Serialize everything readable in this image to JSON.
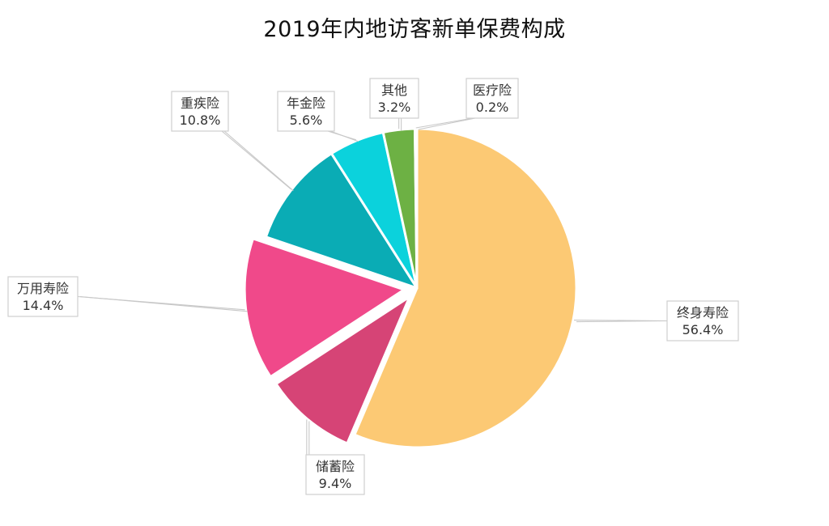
{
  "chart_data": {
    "type": "pie",
    "title": "2019年内地访客新单保费构成",
    "slices": [
      {
        "name": "终身寿险",
        "value": 56.4,
        "label": "56.4%",
        "color": "#FCC974"
      },
      {
        "name": "储蓄险",
        "value": 9.4,
        "label": "9.4%",
        "color": "#D64476"
      },
      {
        "name": "万用寿险",
        "value": 14.4,
        "label": "14.4%",
        "color": "#F0498A"
      },
      {
        "name": "重疾险",
        "value": 10.8,
        "label": "10.8%",
        "color": "#0AACB5"
      },
      {
        "name": "年金险",
        "value": 5.6,
        "label": "5.6%",
        "color": "#0BD2DC"
      },
      {
        "name": "其他",
        "value": 3.2,
        "label": "3.2%",
        "color": "#6DB144"
      },
      {
        "name": "医疗险",
        "value": 0.2,
        "label": "0.2%",
        "color": "#27648B"
      }
    ]
  }
}
